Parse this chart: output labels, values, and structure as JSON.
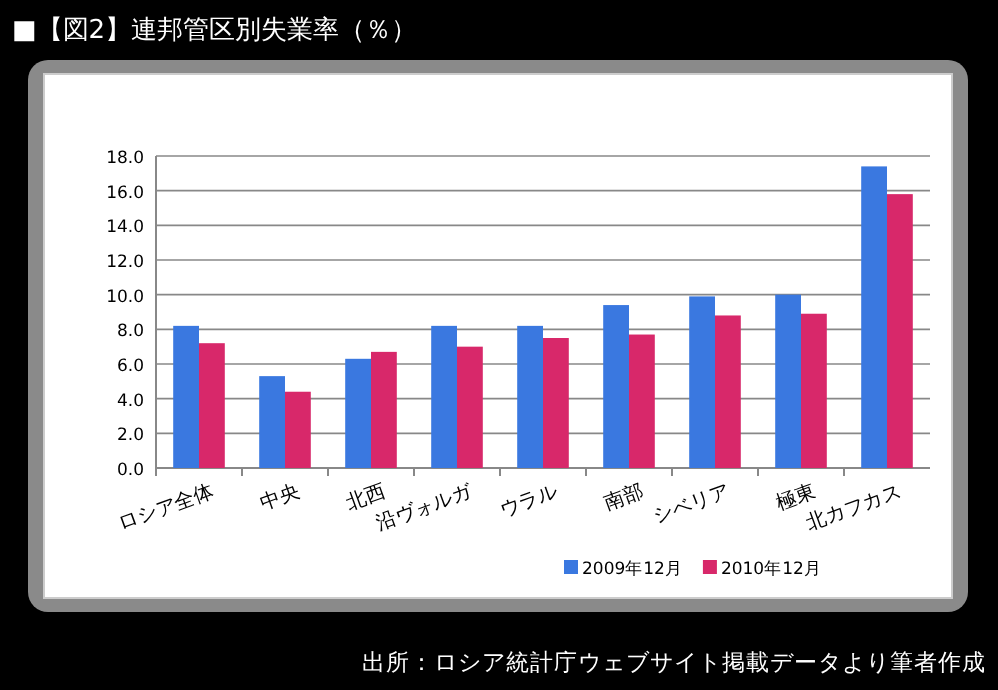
{
  "chart_data": {
    "type": "bar",
    "title": "■【図2】連邦管区別失業率（％）",
    "categories": [
      "ロシア全体",
      "中央",
      "北西",
      "沿ヴォルガ",
      "ウラル",
      "南部",
      "シベリア",
      "極東",
      "北カフカス"
    ],
    "series": [
      {
        "name": "2009年12月",
        "color": "#3a78e0",
        "values": [
          8.2,
          5.3,
          6.3,
          8.2,
          8.2,
          9.4,
          9.9,
          10.0,
          17.4
        ]
      },
      {
        "name": "2010年12月",
        "color": "#d8286a",
        "values": [
          7.2,
          4.4,
          6.7,
          7.0,
          7.5,
          7.7,
          8.8,
          8.9,
          15.8
        ]
      }
    ],
    "ylim": [
      0,
      18
    ],
    "yticks": [
      {
        "value": 0,
        "label": "0.0"
      },
      {
        "value": 2,
        "label": "2.0"
      },
      {
        "value": 4,
        "label": "4.0"
      },
      {
        "value": 6,
        "label": "6.0"
      },
      {
        "value": 8,
        "label": "8.0"
      },
      {
        "value": 10,
        "label": "10.0"
      },
      {
        "value": 12,
        "label": "12.0"
      },
      {
        "value": 14,
        "label": "14.0"
      },
      {
        "value": 16,
        "label": "16.0"
      },
      {
        "value": 18,
        "label": "18.0"
      }
    ],
    "grid": "y",
    "legend": "bottom right",
    "annotations": [
      "出所：ロシア統計庁ウェブサイト掲載データより筆者作成"
    ]
  }
}
